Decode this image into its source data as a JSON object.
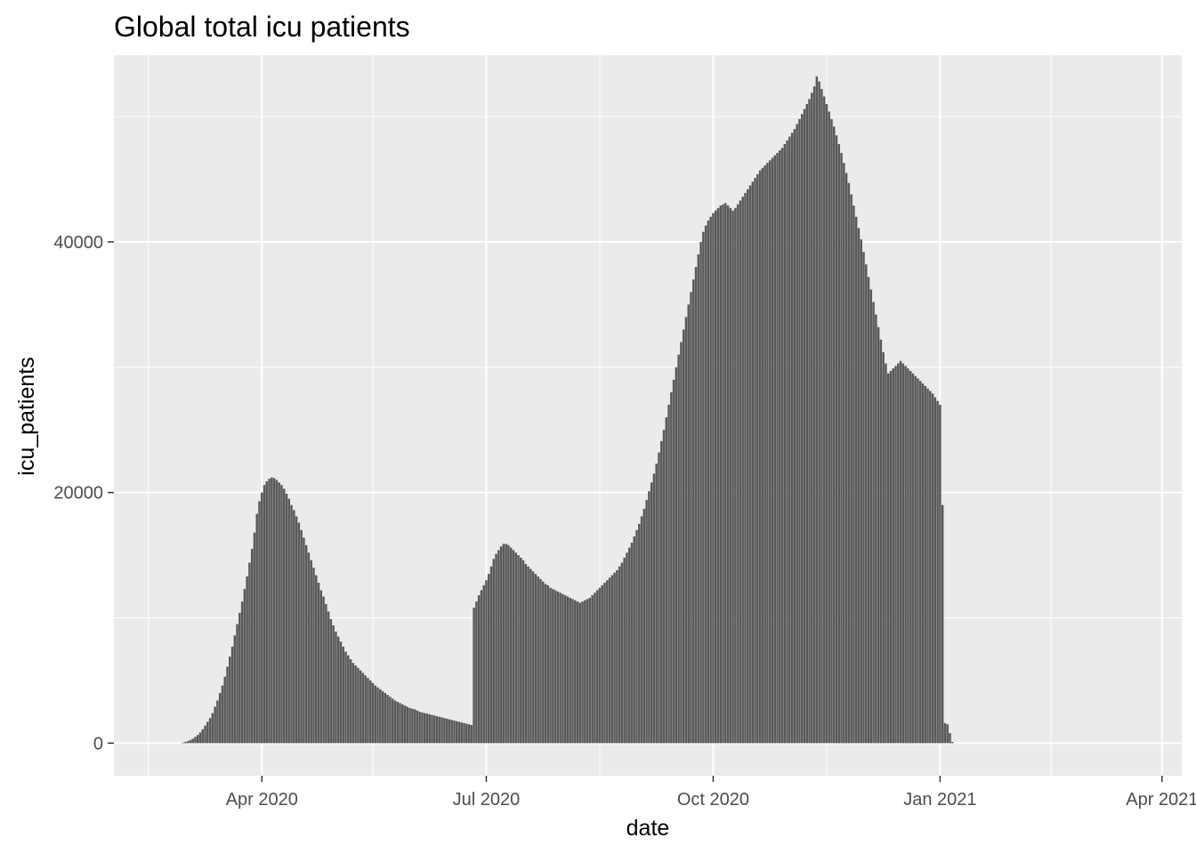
{
  "chart_data": {
    "type": "bar",
    "title": "Global total icu patients",
    "xlabel": "date",
    "ylabel": "icu_patients",
    "ylim": [
      -2600,
      54900
    ],
    "xlim": [
      "2020-02-01",
      "2021-04-09"
    ],
    "x_ticks": [
      {
        "date": "2020-04-01",
        "label": "Apr 2020"
      },
      {
        "date": "2020-07-01",
        "label": "Jul 2020"
      },
      {
        "date": "2020-10-01",
        "label": "Oct 2020"
      },
      {
        "date": "2021-01-01",
        "label": "Jan 2021"
      },
      {
        "date": "2021-04-01",
        "label": "Apr 2021"
      }
    ],
    "x_minor_ticks": [
      "2020-02-15",
      "2020-05-16",
      "2020-08-16",
      "2020-11-16",
      "2021-02-15"
    ],
    "y_ticks": [
      0,
      20000,
      40000
    ],
    "y_minor_ticks": [
      10000,
      30000,
      50000
    ],
    "grid": true,
    "bar_color": "#595959",
    "panel_color": "#ebebeb",
    "grid_color": "#ffffff",
    "start_date": "2020-02-24",
    "values": [
      0,
      0,
      0,
      0,
      0,
      50,
      100,
      150,
      250,
      350,
      500,
      650,
      850,
      1100,
      1400,
      1700,
      2000,
      2400,
      2900,
      3400,
      4000,
      4600,
      5300,
      6100,
      6900,
      7700,
      8600,
      9500,
      10400,
      11300,
      12300,
      13300,
      14400,
      15500,
      16800,
      18300,
      19300,
      20000,
      20600,
      20900,
      21100,
      21200,
      21150,
      21000,
      20800,
      20600,
      20300,
      19900,
      19500,
      19000,
      18600,
      18100,
      17600,
      17000,
      16400,
      15800,
      15200,
      14600,
      14000,
      13400,
      12800,
      12200,
      11700,
      11100,
      10500,
      9900,
      9400,
      8900,
      8500,
      8100,
      7700,
      7300,
      7000,
      6700,
      6400,
      6200,
      6000,
      5800,
      5600,
      5400,
      5200,
      5000,
      4800,
      4600,
      4450,
      4300,
      4150,
      4000,
      3850,
      3700,
      3550,
      3400,
      3300,
      3200,
      3100,
      3000,
      2900,
      2800,
      2750,
      2700,
      2600,
      2500,
      2450,
      2400,
      2350,
      2300,
      2250,
      2200,
      2150,
      2100,
      2050,
      2000,
      1950,
      1900,
      1850,
      1800,
      1750,
      1700,
      1650,
      1600,
      1550,
      1500,
      1450,
      10800,
      11300,
      11800,
      12200,
      12600,
      13000,
      13500,
      14100,
      14700,
      15100,
      15400,
      15700,
      15900,
      15900,
      15800,
      15600,
      15400,
      15200,
      15000,
      14800,
      14600,
      14300,
      14100,
      13900,
      13700,
      13500,
      13300,
      13100,
      12900,
      12700,
      12600,
      12400,
      12300,
      12200,
      12100,
      12000,
      11900,
      11800,
      11700,
      11600,
      11500,
      11400,
      11300,
      11200,
      11300,
      11400,
      11500,
      11600,
      11800,
      12000,
      12200,
      12400,
      12600,
      12800,
      13000,
      13200,
      13400,
      13600,
      13800,
      14100,
      14400,
      14800,
      15200,
      15600,
      16000,
      16500,
      17000,
      17500,
      18100,
      18700,
      19400,
      20100,
      20800,
      21500,
      22300,
      23200,
      24100,
      25000,
      26000,
      27000,
      28000,
      29000,
      30000,
      31000,
      32000,
      33000,
      34000,
      35000,
      36000,
      37000,
      38000,
      39000,
      40000,
      40800,
      41300,
      41700,
      42000,
      42300,
      42500,
      42700,
      42900,
      43000,
      43100,
      42900,
      42700,
      42500,
      42700,
      43000,
      43300,
      43600,
      43900,
      44200,
      44500,
      44800,
      45100,
      45400,
      45700,
      45900,
      46100,
      46300,
      46500,
      46700,
      46900,
      47100,
      47300,
      47500,
      47800,
      48100,
      48400,
      48700,
      49000,
      49400,
      49800,
      50200,
      50600,
      51000,
      51400,
      51900,
      52400,
      53200,
      52800,
      52200,
      51600,
      51000,
      50400,
      49800,
      49200,
      48500,
      47800,
      47100,
      46300,
      45500,
      44700,
      43800,
      42900,
      42000,
      41100,
      40200,
      39200,
      38200,
      37200,
      36200,
      35200,
      34200,
      33200,
      32200,
      31200,
      30300,
      29500,
      29700,
      29900,
      30100,
      30300,
      30500,
      30300,
      30100,
      29900,
      29700,
      29500,
      29300,
      29100,
      28900,
      28700,
      28500,
      28300,
      28100,
      27900,
      27600,
      27300,
      27000,
      19000,
      1600,
      1500,
      800,
      100
    ]
  }
}
